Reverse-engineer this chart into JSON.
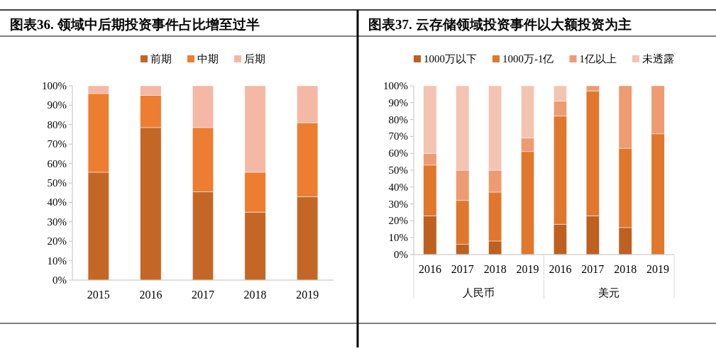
{
  "chart_data": [
    {
      "type": "bar",
      "title": "图表36.  领域中后期投资事件占比增至过半",
      "categories": [
        "2015",
        "2016",
        "2017",
        "2018",
        "2019"
      ],
      "stacked": true,
      "legend": "top",
      "ylim": [
        0,
        100
      ],
      "yticks": [
        {
          "value": 0,
          "label": "0%"
        },
        {
          "value": 10,
          "label": "10%"
        },
        {
          "value": 20,
          "label": "20%"
        },
        {
          "value": 30,
          "label": "30%"
        },
        {
          "value": 40,
          "label": "40%"
        },
        {
          "value": 50,
          "label": "50%"
        },
        {
          "value": 60,
          "label": "60%"
        },
        {
          "value": 70,
          "label": "70%"
        },
        {
          "value": 80,
          "label": "80%"
        },
        {
          "value": 90,
          "label": "90%"
        },
        {
          "value": 100,
          "label": "100%"
        }
      ],
      "series": [
        {
          "name": "前期",
          "color": "#c46726",
          "values": [
            55.5,
            78.5,
            45.5,
            35,
            43
          ]
        },
        {
          "name": "中期",
          "color": "#ed7d31",
          "values": [
            40.5,
            16.5,
            33,
            20.5,
            38
          ]
        },
        {
          "name": "后期",
          "color": "#f4b8a4",
          "values": [
            4,
            5,
            21.5,
            44.5,
            19
          ]
        }
      ]
    },
    {
      "type": "bar",
      "title": "图表37.  云存储领域投资事件以大额投资为主",
      "categories": [
        "2016",
        "2017",
        "2018",
        "2019",
        "2016",
        "2017",
        "2018",
        "2019"
      ],
      "stacked": true,
      "legend": "top",
      "annotations": [
        "人民币",
        "美元"
      ],
      "ylim": [
        0,
        100
      ],
      "yticks": [
        {
          "value": 0,
          "label": "0%"
        },
        {
          "value": 10,
          "label": "10%"
        },
        {
          "value": 20,
          "label": "20%"
        },
        {
          "value": 30,
          "label": "30%"
        },
        {
          "value": 40,
          "label": "40%"
        },
        {
          "value": 50,
          "label": "50%"
        },
        {
          "value": 60,
          "label": "60%"
        },
        {
          "value": 70,
          "label": "70%"
        },
        {
          "value": 80,
          "label": "80%"
        },
        {
          "value": 90,
          "label": "90%"
        },
        {
          "value": 100,
          "label": "100%"
        }
      ],
      "series": [
        {
          "name": "1000万以下",
          "color": "#bd6020",
          "values": [
            23,
            6,
            8,
            0,
            18,
            23,
            16,
            0
          ]
        },
        {
          "name": "1000万-1亿",
          "color": "#e0772c",
          "values": [
            30,
            26,
            29,
            61,
            64,
            74,
            47,
            71.5
          ]
        },
        {
          "name": "1亿以上",
          "color": "#ee9b72",
          "values": [
            7,
            18,
            13,
            8,
            9,
            3,
            37,
            28.5
          ]
        },
        {
          "name": "未透露",
          "color": "#f4c4b2",
          "values": [
            40,
            50,
            50,
            31,
            9,
            0,
            0,
            0
          ]
        }
      ]
    }
  ]
}
